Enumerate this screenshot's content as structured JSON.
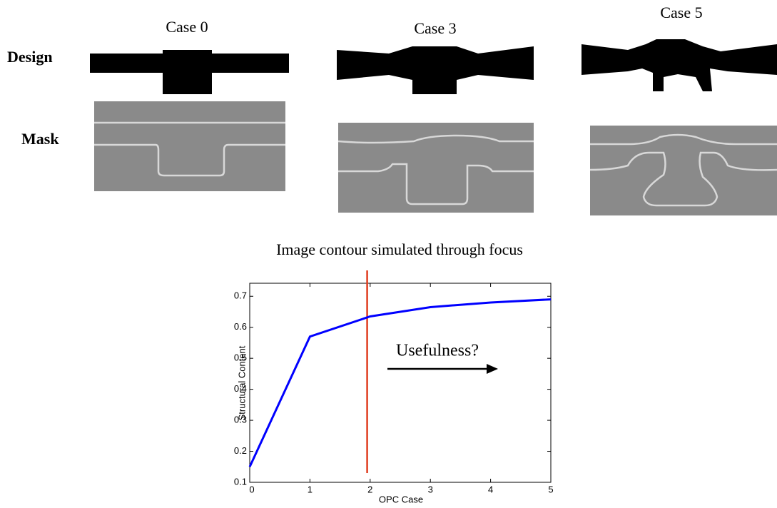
{
  "figure": {
    "columns": [
      "Case 0",
      "Case 3",
      "Case 5"
    ],
    "rows": [
      "Design",
      "Mask"
    ]
  },
  "chart_data": {
    "type": "line",
    "title": "Image contour simulated through focus",
    "x_label": "OPC Case",
    "y_label": "Structural Content",
    "x": [
      0,
      1,
      2,
      3,
      4,
      5
    ],
    "series": [
      {
        "name": "Structural Content",
        "color": "#0000ff",
        "values": [
          0.15,
          0.57,
          0.635,
          0.665,
          0.68,
          0.69
        ]
      }
    ],
    "xlim": [
      0,
      5
    ],
    "ylim": [
      0.1,
      0.742
    ],
    "xticks": [
      0,
      1,
      2,
      3,
      4,
      5
    ],
    "yticks": [
      0.1,
      0.2,
      0.3,
      0.4,
      0.5,
      0.6,
      0.7
    ],
    "vline": {
      "x": 1.95,
      "color": "#e03c1e"
    },
    "annotation": {
      "text": "Usefulness?"
    }
  }
}
